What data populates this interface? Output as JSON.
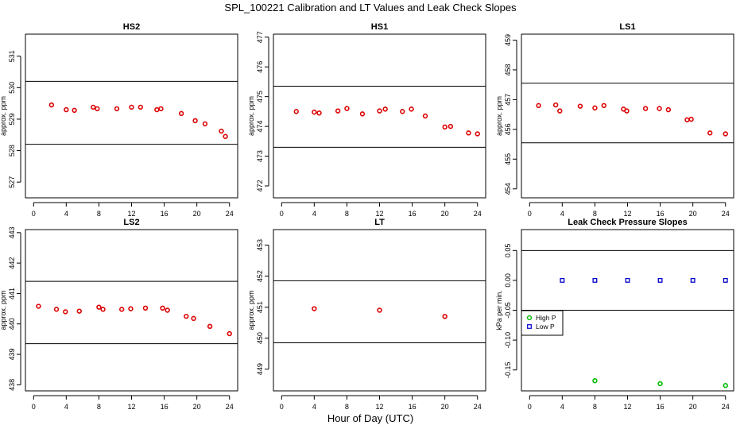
{
  "title": "SPL_100221  Calibration and LT Values and Leak Check Slopes",
  "xlabel": "Hour of Day (UTC)",
  "colors": {
    "points": "#dd0000",
    "high_p": "#00bb00",
    "low_p": "#0000cc",
    "axis": "#000000"
  },
  "chart_data": [
    {
      "type": "scatter",
      "title": "HS2",
      "xlabel": "",
      "ylabel": "approx. ppm",
      "xlim": [
        -1,
        25
      ],
      "xticks": [
        0,
        4,
        8,
        12,
        16,
        20,
        24
      ],
      "ylim": [
        526.5,
        531.7
      ],
      "yticks": [
        527,
        528,
        529,
        530,
        531
      ],
      "hlines": [
        530.2,
        528.2
      ],
      "series": [
        {
          "color": "#dd0000",
          "marker": "circle",
          "x": [
            2.2,
            4,
            5,
            7.3,
            7.8,
            10.2,
            12,
            13.1,
            15.1,
            15.6,
            18.1,
            19.8,
            21,
            23,
            23.5
          ],
          "y": [
            529.45,
            529.3,
            529.28,
            529.38,
            529.33,
            529.33,
            529.38,
            529.38,
            529.3,
            529.33,
            529.18,
            528.95,
            528.85,
            528.62,
            528.45
          ]
        }
      ]
    },
    {
      "type": "scatter",
      "title": "HS1",
      "xlabel": "",
      "ylabel": "approx. ppm",
      "xlim": [
        -1,
        25
      ],
      "xticks": [
        0,
        4,
        8,
        12,
        16,
        20,
        24
      ],
      "ylim": [
        471.6,
        477.1
      ],
      "yticks": [
        472,
        473,
        474,
        475,
        476,
        477
      ],
      "hlines": [
        475.35,
        473.3
      ],
      "series": [
        {
          "color": "#dd0000",
          "marker": "circle",
          "x": [
            1.8,
            4,
            4.6,
            6.9,
            8,
            9.9,
            12,
            12.7,
            14.8,
            15.9,
            17.6,
            20,
            20.7,
            22.9,
            24
          ],
          "y": [
            474.5,
            474.48,
            474.45,
            474.52,
            474.6,
            474.42,
            474.52,
            474.58,
            474.5,
            474.58,
            474.35,
            473.98,
            474.0,
            473.78,
            473.75
          ]
        }
      ]
    },
    {
      "type": "scatter",
      "title": "LS1",
      "xlabel": "",
      "ylabel": "approx. ppm",
      "xlim": [
        -1,
        25
      ],
      "xticks": [
        0,
        4,
        8,
        12,
        16,
        20,
        24
      ],
      "ylim": [
        453.7,
        459.2
      ],
      "yticks": [
        454,
        455,
        456,
        457,
        458,
        459
      ],
      "hlines": [
        457.55,
        455.55
      ],
      "series": [
        {
          "color": "#dd0000",
          "marker": "circle",
          "x": [
            1.1,
            3.2,
            3.7,
            6.2,
            8,
            9.1,
            11.5,
            11.9,
            14.2,
            15.9,
            17,
            19.3,
            19.8,
            22.1,
            24
          ],
          "y": [
            456.8,
            456.82,
            456.62,
            456.78,
            456.72,
            456.8,
            456.68,
            456.62,
            456.7,
            456.7,
            456.66,
            456.32,
            456.34,
            455.88,
            455.85
          ]
        }
      ]
    },
    {
      "type": "scatter",
      "title": "LS2",
      "xlabel": "",
      "ylabel": "approx. ppm",
      "xlim": [
        -1,
        25
      ],
      "xticks": [
        0,
        4,
        8,
        12,
        16,
        20,
        24
      ],
      "ylim": [
        437.8,
        443.1
      ],
      "yticks": [
        438,
        439,
        440,
        441,
        442,
        443
      ],
      "hlines": [
        441.4,
        439.35
      ],
      "series": [
        {
          "color": "#dd0000",
          "marker": "circle",
          "x": [
            0.6,
            2.8,
            3.9,
            5.6,
            8,
            8.5,
            10.8,
            11.9,
            13.7,
            15.8,
            16.4,
            18.7,
            19.6,
            21.6,
            24
          ],
          "y": [
            440.58,
            440.48,
            440.4,
            440.42,
            440.55,
            440.48,
            440.48,
            440.5,
            440.52,
            440.52,
            440.45,
            440.25,
            440.18,
            439.92,
            439.68
          ]
        }
      ]
    },
    {
      "type": "scatter",
      "title": "LT",
      "xlabel": "",
      "ylabel": "approx. ppm",
      "xlim": [
        -1,
        25
      ],
      "xticks": [
        0,
        4,
        8,
        12,
        16,
        20,
        24
      ],
      "ylim": [
        448.3,
        453.5
      ],
      "yticks": [
        449,
        450,
        451,
        452,
        453
      ],
      "hlines": [
        451.85,
        449.85
      ],
      "series": [
        {
          "color": "#dd0000",
          "marker": "circle",
          "x": [
            4,
            12,
            20
          ],
          "y": [
            450.95,
            450.9,
            450.7
          ]
        }
      ]
    },
    {
      "type": "scatter",
      "title": "Leak Check Pressure Slopes",
      "xlabel": "",
      "ylabel": "kPa per min.",
      "xlim": [
        -1,
        25
      ],
      "xticks": [
        0,
        4,
        8,
        12,
        16,
        20,
        24
      ],
      "ylim": [
        -0.185,
        0.085
      ],
      "yticks": [
        -0.15,
        -0.1,
        -0.05,
        0.0,
        0.05
      ],
      "yticklabels": [
        "-0.15",
        "-0.10",
        "-0.05",
        "0.00",
        "0.05"
      ],
      "hlines": [
        0.05,
        -0.05
      ],
      "legend": {
        "position": "left",
        "entries": [
          {
            "label": "High P",
            "color": "#00bb00"
          },
          {
            "label": "Low P",
            "color": "#0000cc"
          }
        ]
      },
      "series": [
        {
          "name": "High P",
          "color": "#00bb00",
          "marker": "circle",
          "x": [
            8,
            16,
            24
          ],
          "y": [
            -0.168,
            -0.173,
            -0.176
          ]
        },
        {
          "name": "Low P",
          "color": "#0000cc",
          "marker": "square",
          "x": [
            4,
            8,
            12,
            16,
            20,
            24
          ],
          "y": [
            0.0,
            0.0,
            0.0,
            0.0,
            0.0,
            0.0
          ]
        }
      ]
    }
  ]
}
